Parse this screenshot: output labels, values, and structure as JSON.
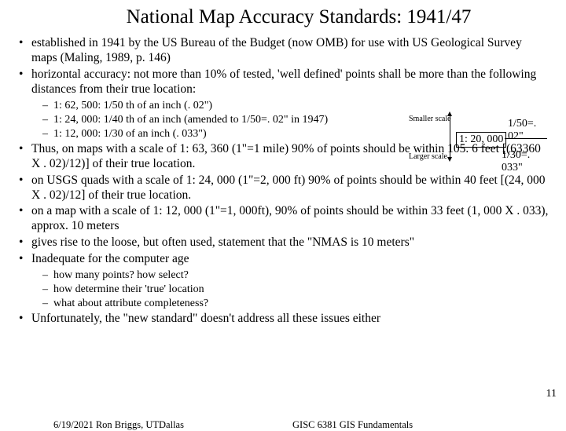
{
  "title": "National Map Accuracy Standards: 1941/47",
  "bullets": {
    "b1": "established in 1941 by the US Bureau of the Budget (now OMB) for use with US Geological Survey maps (Maling, 1989, p. 146)",
    "b2": "horizontal accuracy: not more than 10% of tested, 'well defined' points shall be more than the following distances from their true location:",
    "b2s1": "1: 62, 500: 1/50 th of an inch (. 02\")",
    "b2s2": "1: 24, 000: 1/40 th of an inch  (amended to 1/50=. 02\" in 1947)",
    "b2s3": "1: 12, 000: 1/30 of an inch (. 033\")",
    "b3": "Thus, on maps with a scale of 1: 63, 360 (1\"=1 mile)  90% of points should be within 105. 6 feet [(63360 X . 02)/12)] of their true location.",
    "b4": "on USGS quads with a scale of 1: 24, 000 (1\"=2, 000 ft) 90% of points should be within 40 feet [(24, 000 X . 02)/12] of their true location.",
    "b5": "on a map with a scale of 1: 12, 000 (1\"=1, 000ft), 90% of points should be within 33 feet (1, 000 X . 033), approx. 10 meters",
    "b6": "gives rise to the loose, but often used, statement that the \"NMAS is 10 meters\"",
    "b7": "Inadequate for the computer age",
    "b7s1": "how many points? how select?",
    "b7s2": "how determine their 'true' location",
    "b7s3": "what about attribute completeness?",
    "b8": "Unfortunately, the \"new standard\" doesn't address all these issues either"
  },
  "diagram": {
    "smaller": "Smaller scale",
    "larger": "Larger scale",
    "scale": "1: 20, 000",
    "val1": "1/50=. 02\"",
    "val2": "1/30=. 033\""
  },
  "footer": {
    "left": "6/19/2021 Ron Briggs, UTDallas",
    "center": "GISC 6381 GIS Fundamentals"
  },
  "page": "11"
}
